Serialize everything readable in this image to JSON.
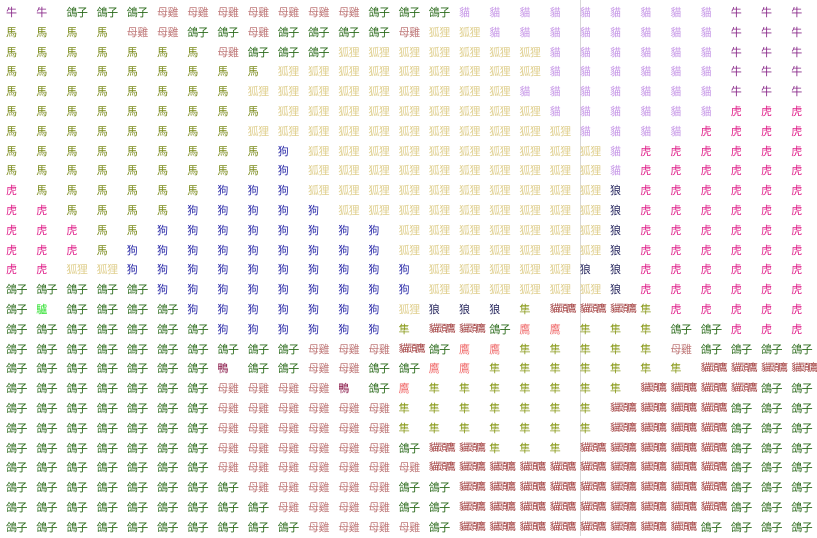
{
  "colors": {
    "牛": "#8a2a8a",
    "馬": "#7a8a1a",
    "鴿子": "#2a6a1a",
    "母雞": "#c07a7a",
    "狐狸": "#e0d090",
    "貓": "#c89ae8",
    "虎": "#e0208a",
    "狗": "#2a2aa8",
    "狼": "#2a2a60",
    "隼": "#8a9a1a",
    "貓頭鷹": "#a03a3a",
    "鷹": "#f06a6a",
    "鴨": "#8a1a4a",
    "驢": "#30e030"
  },
  "rows": [
    [
      "牛",
      "牛",
      "鴿子",
      "鴿子",
      "鴿子",
      "母雞",
      "母雞",
      "母雞",
      "母雞",
      "母雞",
      "母雞",
      "母雞",
      "鴿子",
      "鴿子",
      "鴿子",
      "貓",
      "貓",
      "貓",
      "貓",
      "貓",
      "貓",
      "貓",
      "貓",
      "貓",
      "牛",
      "牛",
      "牛"
    ],
    [
      "馬",
      "馬",
      "馬",
      "馬",
      "母雞",
      "母雞",
      "鴿子",
      "鴿子",
      "母雞",
      "鴿子",
      "鴿子",
      "鴿子",
      "鴿子",
      "母雞",
      "狐狸",
      "狐狸",
      "貓",
      "貓",
      "貓",
      "貓",
      "貓",
      "貓",
      "貓",
      "貓",
      "牛",
      "牛",
      "牛"
    ],
    [
      "馬",
      "馬",
      "馬",
      "馬",
      "馬",
      "馬",
      "馬",
      "母雞",
      "鴿子",
      "鴿子",
      "鴿子",
      "狐狸",
      "狐狸",
      "狐狸",
      "狐狸",
      "狐狸",
      "狐狸",
      "狐狸",
      "貓",
      "貓",
      "貓",
      "貓",
      "貓",
      "貓",
      "牛",
      "牛",
      "牛"
    ],
    [
      "馬",
      "馬",
      "馬",
      "馬",
      "馬",
      "馬",
      "馬",
      "馬",
      "馬",
      "狐狸",
      "狐狸",
      "狐狸",
      "狐狸",
      "狐狸",
      "狐狸",
      "狐狸",
      "狐狸",
      "狐狸",
      "貓",
      "貓",
      "貓",
      "貓",
      "貓",
      "貓",
      "牛",
      "牛",
      "牛"
    ],
    [
      "馬",
      "馬",
      "馬",
      "馬",
      "馬",
      "馬",
      "馬",
      "馬",
      "狐狸",
      "狐狸",
      "狐狸",
      "狐狸",
      "狐狸",
      "狐狸",
      "狐狸",
      "狐狸",
      "狐狸",
      "貓",
      "貓",
      "貓",
      "貓",
      "貓",
      "貓",
      "貓",
      "牛",
      "牛",
      "牛"
    ],
    [
      "馬",
      "馬",
      "馬",
      "馬",
      "馬",
      "馬",
      "馬",
      "馬",
      "馬",
      "狐狸",
      "狐狸",
      "狐狸",
      "狐狸",
      "狐狸",
      "狐狸",
      "狐狸",
      "狐狸",
      "狐狸",
      "貓",
      "貓",
      "貓",
      "貓",
      "貓",
      "貓",
      "虎",
      "虎",
      "虎"
    ],
    [
      "馬",
      "馬",
      "馬",
      "馬",
      "馬",
      "馬",
      "馬",
      "馬",
      "狐狸",
      "狐狸",
      "狐狸",
      "狐狸",
      "狐狸",
      "狐狸",
      "狐狸",
      "狐狸",
      "狐狸",
      "狐狸",
      "狐狸",
      "貓",
      "貓",
      "貓",
      "貓",
      "虎",
      "虎",
      "虎",
      "虎"
    ],
    [
      "馬",
      "馬",
      "馬",
      "馬",
      "馬",
      "馬",
      "馬",
      "馬",
      "馬",
      "狗",
      "狐狸",
      "狐狸",
      "狐狸",
      "狐狸",
      "狐狸",
      "狐狸",
      "狐狸",
      "狐狸",
      "狐狸",
      "狐狸",
      "貓",
      "虎",
      "虎",
      "虎",
      "虎",
      "虎",
      "虎"
    ],
    [
      "馬",
      "馬",
      "馬",
      "馬",
      "馬",
      "馬",
      "馬",
      "馬",
      "馬",
      "狗",
      "狐狸",
      "狐狸",
      "狐狸",
      "狐狸",
      "狐狸",
      "狐狸",
      "狐狸",
      "狐狸",
      "狐狸",
      "狐狸",
      "貓",
      "虎",
      "虎",
      "虎",
      "虎",
      "虎",
      "虎"
    ],
    [
      "虎",
      "馬",
      "馬",
      "馬",
      "馬",
      "馬",
      "馬",
      "狗",
      "狗",
      "狗",
      "狐狸",
      "狐狸",
      "狐狸",
      "狐狸",
      "狐狸",
      "狐狸",
      "狐狸",
      "狐狸",
      "狐狸",
      "狐狸",
      "狼",
      "虎",
      "虎",
      "虎",
      "虎",
      "虎",
      "虎"
    ],
    [
      "虎",
      "虎",
      "馬",
      "馬",
      "馬",
      "馬",
      "狗",
      "狗",
      "狗",
      "狗",
      "狗",
      "狐狸",
      "狐狸",
      "狐狸",
      "狐狸",
      "狐狸",
      "狐狸",
      "狐狸",
      "狐狸",
      "狐狸",
      "狼",
      "虎",
      "虎",
      "虎",
      "虎",
      "虎",
      "虎"
    ],
    [
      "虎",
      "虎",
      "虎",
      "馬",
      "馬",
      "狗",
      "狗",
      "狗",
      "狗",
      "狗",
      "狗",
      "狗",
      "狗",
      "狐狸",
      "狐狸",
      "狐狸",
      "狐狸",
      "狐狸",
      "狐狸",
      "狐狸",
      "狼",
      "虎",
      "虎",
      "虎",
      "虎",
      "虎",
      "虎"
    ],
    [
      "虎",
      "虎",
      "虎",
      "馬",
      "狗",
      "狗",
      "狗",
      "狗",
      "狗",
      "狗",
      "狗",
      "狗",
      "狗",
      "狐狸",
      "狐狸",
      "狐狸",
      "狐狸",
      "狐狸",
      "狐狸",
      "狐狸",
      "狼",
      "虎",
      "虎",
      "虎",
      "虎",
      "虎",
      "虎"
    ],
    [
      "虎",
      "虎",
      "狐狸",
      "狐狸",
      "狗",
      "狗",
      "狗",
      "狗",
      "狗",
      "狗",
      "狗",
      "狗",
      "狗",
      "狗",
      "狐狸",
      "狐狸",
      "狐狸",
      "狐狸",
      "狐狸",
      "狼",
      "狼",
      "虎",
      "虎",
      "虎",
      "虎",
      "虎",
      "虎"
    ],
    [
      "鴿子",
      "鴿子",
      "鴿子",
      "鴿子",
      "鴿子",
      "狗",
      "狗",
      "狗",
      "狗",
      "狗",
      "狗",
      "狗",
      "狗",
      "狗",
      "狐狸",
      "狐狸",
      "狐狸",
      "狐狸",
      "狐狸",
      "狐狸",
      "狼",
      "虎",
      "虎",
      "虎",
      "虎",
      "虎",
      "虎"
    ],
    [
      "鴿子",
      "驢",
      "鴿子",
      "鴿子",
      "鴿子",
      "鴿子",
      "狗",
      "狗",
      "狗",
      "狗",
      "狗",
      "狗",
      "狗",
      "狐狸",
      "狼",
      "狼",
      "狼",
      "隼",
      "貓頭鷹",
      "貓頭鷹",
      "貓頭鷹",
      "隼",
      "虎",
      "虎",
      "虎",
      "虎",
      "虎"
    ],
    [
      "鴿子",
      "鴿子",
      "鴿子",
      "鴿子",
      "鴿子",
      "鴿子",
      "鴿子",
      "狗",
      "狗",
      "狗",
      "狗",
      "狗",
      "狗",
      "隼",
      "貓頭鷹",
      "貓頭鷹",
      "鴿子",
      "鷹",
      "鷹",
      "隼",
      "隼",
      "隼",
      "鴿子",
      "鴿子",
      "虎",
      "虎",
      "虎"
    ],
    [
      "鴿子",
      "鴿子",
      "鴿子",
      "鴿子",
      "鴿子",
      "鴿子",
      "鴿子",
      "鴿子",
      "鴿子",
      "鴿子",
      "母雞",
      "母雞",
      "母雞",
      "貓頭鷹",
      "鴿子",
      "鷹",
      "鷹",
      "隼",
      "隼",
      "隼",
      "隼",
      "隼",
      "母雞",
      "鴿子",
      "鴿子",
      "鴿子",
      "鴿子"
    ],
    [
      "鴿子",
      "鴿子",
      "鴿子",
      "鴿子",
      "鴿子",
      "鴿子",
      "鴿子",
      "鴨",
      "鴿子",
      "鴿子",
      "母雞",
      "母雞",
      "鴿子",
      "鴿子",
      "鷹",
      "鷹",
      "隼",
      "隼",
      "隼",
      "隼",
      "隼",
      "隼",
      "隼",
      "貓頭鷹",
      "貓頭鷹",
      "貓頭鷹",
      "貓頭鷹"
    ],
    [
      "鴿子",
      "鴿子",
      "鴿子",
      "鴿子",
      "鴿子",
      "鴿子",
      "鴿子",
      "母雞",
      "母雞",
      "母雞",
      "母雞",
      "鴨",
      "鴿子",
      "鷹",
      "隼",
      "隼",
      "隼",
      "隼",
      "隼",
      "隼",
      "隼",
      "貓頭鷹",
      "貓頭鷹",
      "貓頭鷹",
      "貓頭鷹",
      "鴿子",
      "鴿子"
    ],
    [
      "鴿子",
      "鴿子",
      "鴿子",
      "鴿子",
      "鴿子",
      "鴿子",
      "鴿子",
      "母雞",
      "母雞",
      "母雞",
      "母雞",
      "母雞",
      "母雞",
      "隼",
      "隼",
      "隼",
      "隼",
      "隼",
      "隼",
      "隼",
      "貓頭鷹",
      "貓頭鷹",
      "貓頭鷹",
      "貓頭鷹",
      "鴿子",
      "鴿子",
      "鴿子"
    ],
    [
      "鴿子",
      "鴿子",
      "鴿子",
      "鴿子",
      "鴿子",
      "鴿子",
      "鴿子",
      "母雞",
      "母雞",
      "母雞",
      "母雞",
      "母雞",
      "母雞",
      "隼",
      "隼",
      "隼",
      "隼",
      "隼",
      "隼",
      "隼",
      "貓頭鷹",
      "貓頭鷹",
      "貓頭鷹",
      "貓頭鷹",
      "鴿子",
      "鴿子",
      "鴿子"
    ],
    [
      "鴿子",
      "鴿子",
      "鴿子",
      "鴿子",
      "鴿子",
      "鴿子",
      "鴿子",
      "母雞",
      "母雞",
      "母雞",
      "母雞",
      "母雞",
      "母雞",
      "鴿子",
      "貓頭鷹",
      "貓頭鷹",
      "隼",
      "隼",
      "隼",
      "貓頭鷹",
      "貓頭鷹",
      "貓頭鷹",
      "貓頭鷹",
      "貓頭鷹",
      "鴿子",
      "鴿子",
      "鴿子"
    ],
    [
      "鴿子",
      "鴿子",
      "鴿子",
      "鴿子",
      "鴿子",
      "鴿子",
      "鴿子",
      "母雞",
      "母雞",
      "母雞",
      "母雞",
      "母雞",
      "母雞",
      "母雞",
      "貓頭鷹",
      "貓頭鷹",
      "貓頭鷹",
      "貓頭鷹",
      "貓頭鷹",
      "貓頭鷹",
      "貓頭鷹",
      "貓頭鷹",
      "貓頭鷹",
      "貓頭鷹",
      "鴿子",
      "鴿子",
      "鴿子"
    ],
    [
      "鴿子",
      "鴿子",
      "鴿子",
      "鴿子",
      "鴿子",
      "鴿子",
      "鴿子",
      "鴿子",
      "母雞",
      "母雞",
      "母雞",
      "母雞",
      "母雞",
      "鴿子",
      "鴿子",
      "貓頭鷹",
      "貓頭鷹",
      "貓頭鷹",
      "貓頭鷹",
      "貓頭鷹",
      "貓頭鷹",
      "貓頭鷹",
      "貓頭鷹",
      "貓頭鷹",
      "鴿子",
      "鴿子",
      "鴿子"
    ],
    [
      "鴿子",
      "鴿子",
      "鴿子",
      "鴿子",
      "鴿子",
      "鴿子",
      "鴿子",
      "鴿子",
      "鴿子",
      "母雞",
      "母雞",
      "母雞",
      "母雞",
      "鴿子",
      "鴿子",
      "貓頭鷹",
      "貓頭鷹",
      "貓頭鷹",
      "貓頭鷹",
      "貓頭鷹",
      "貓頭鷹",
      "貓頭鷹",
      "貓頭鷹",
      "貓頭鷹",
      "鴿子",
      "鴿子",
      "鴿子"
    ],
    [
      "鴿子",
      "鴿子",
      "鴿子",
      "鴿子",
      "鴿子",
      "鴿子",
      "鴿子",
      "鴿子",
      "鴿子",
      "鴿子",
      "母雞",
      "母雞",
      "母雞",
      "母雞",
      "鴿子",
      "貓頭鷹",
      "貓頭鷹",
      "貓頭鷹",
      "貓頭鷹",
      "貓頭鷹",
      "貓頭鷹",
      "貓頭鷹",
      "貓頭鷹",
      "鴿子",
      "鴿子",
      "鴿子",
      "鴿子"
    ]
  ]
}
